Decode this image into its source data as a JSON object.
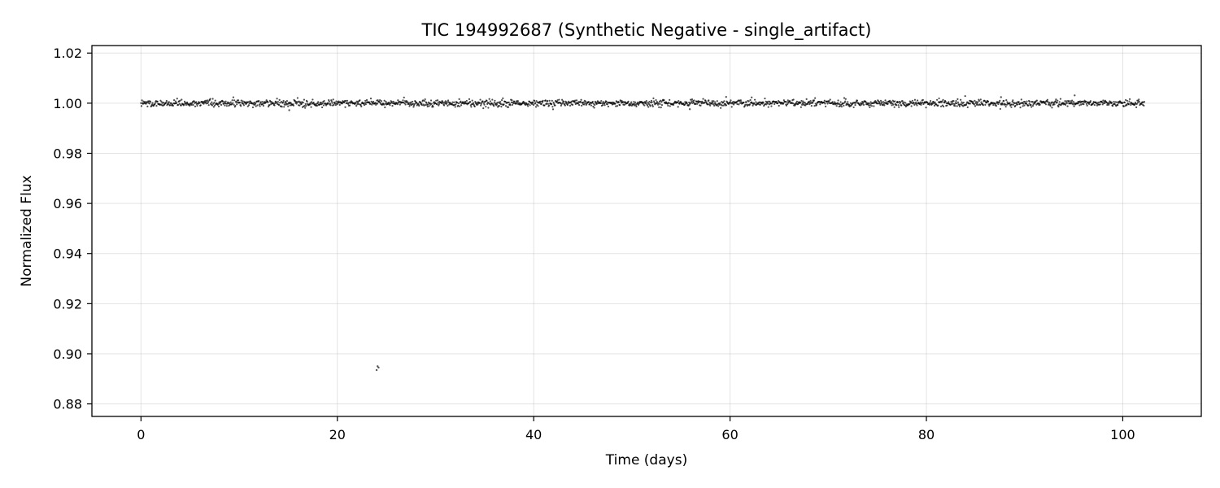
{
  "chart_data": {
    "type": "scatter",
    "title": "TIC 194992687 (Synthetic Negative - single_artifact)",
    "xlabel": "Time (days)",
    "ylabel": "Normalized Flux",
    "xlim": [
      -5,
      108
    ],
    "ylim": [
      0.875,
      1.023
    ],
    "xticks": [
      0,
      20,
      40,
      60,
      80,
      100
    ],
    "yticks": [
      0.88,
      0.9,
      0.92,
      0.94,
      0.96,
      0.98,
      1.0,
      1.02
    ],
    "grid": true,
    "point_color": "#000000",
    "series": [
      {
        "baseline": {
          "x_start": 0.0,
          "x_end": 102.2,
          "y_center": 1.0,
          "y_scatter": 0.0007,
          "point_count": 2000
        },
        "outliers": [
          {
            "x": 24.1,
            "y": 0.895
          },
          {
            "x": 24.2,
            "y": 0.8945
          },
          {
            "x": 24.0,
            "y": 0.8935
          },
          {
            "x": 15.1,
            "y": 0.9972
          },
          {
            "x": 59.6,
            "y": 1.0025
          },
          {
            "x": 62.2,
            "y": 1.0023
          },
          {
            "x": 87.6,
            "y": 1.0024
          },
          {
            "x": 95.1,
            "y": 1.0031
          },
          {
            "x": 55.9,
            "y": 0.9976
          }
        ]
      }
    ]
  }
}
